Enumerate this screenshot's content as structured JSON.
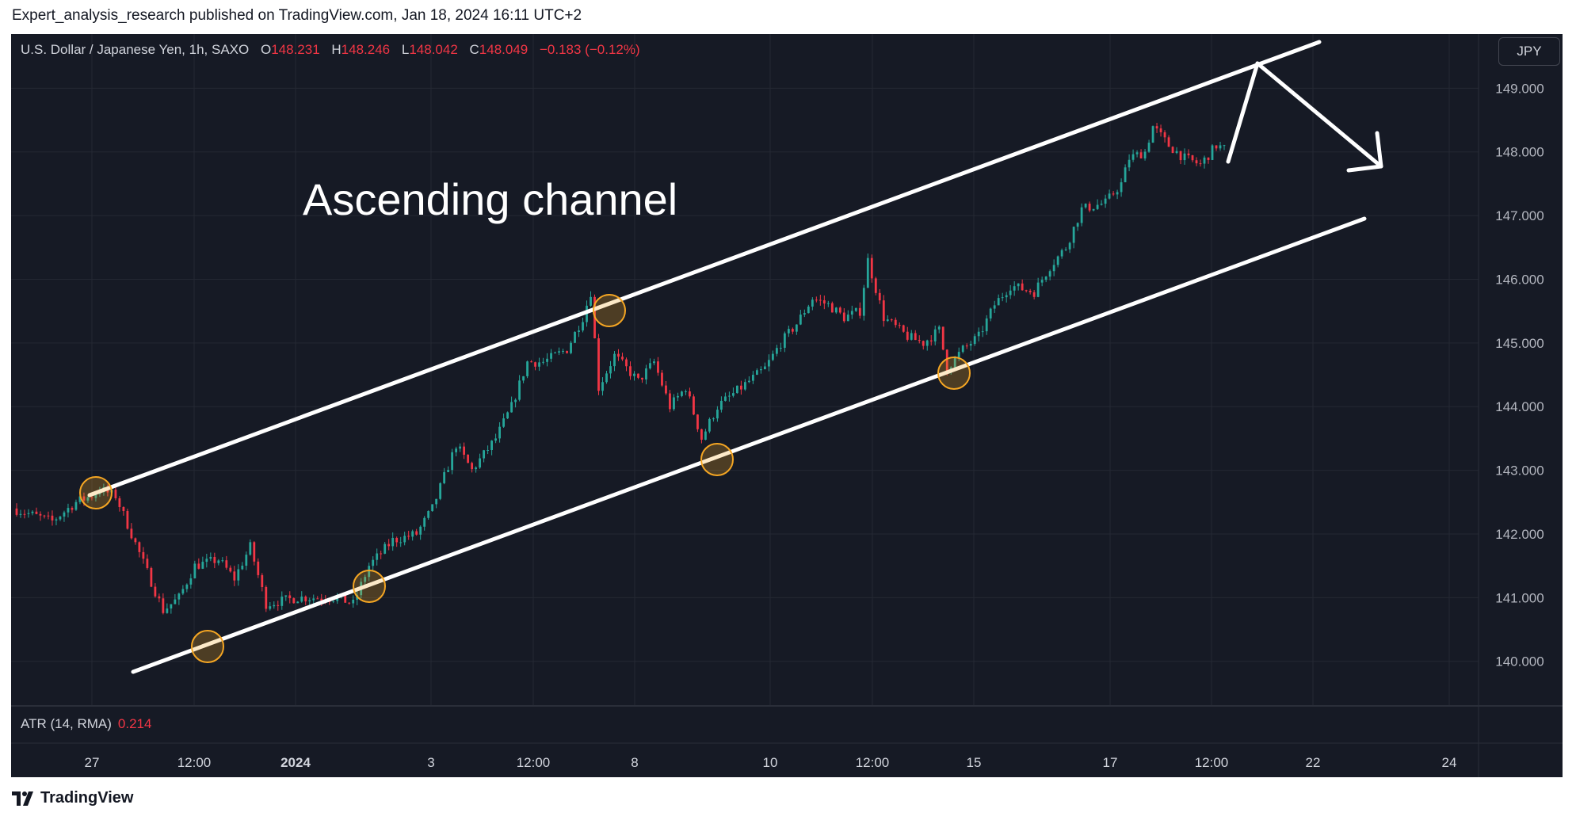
{
  "header": {
    "caption": "Expert_analysis_research published on TradingView.com, Jan 18, 2024 16:11 UTC+2"
  },
  "legend": {
    "symbol": "U.S. Dollar / Japanese Yen, 1h, SAXO",
    "open_label": "O",
    "open": "148.231",
    "high_label": "H",
    "high": "148.246",
    "low_label": "L",
    "low": "148.042",
    "close_label": "C",
    "close": "148.049",
    "change": "−0.183 (−0.12%)"
  },
  "currency_button": "JPY",
  "annotation": "Ascending channel",
  "indicator": {
    "name": "ATR (14, RMA)",
    "value": "0.214"
  },
  "footer": {
    "brand": "TradingView"
  },
  "colors": {
    "background": "#161a25",
    "up": "#26a69a",
    "down": "#f23645",
    "drawing": "#ffffff",
    "marker": "#f5a623"
  },
  "chart_data": {
    "type": "candlestick",
    "ylim": [
      139.3,
      149.85
    ],
    "y_ticks": [
      "140.000",
      "141.000",
      "142.000",
      "143.000",
      "144.000",
      "145.000",
      "146.000",
      "147.000",
      "148.000",
      "149.000"
    ],
    "x_ticks": [
      "27",
      "12:00",
      "2024",
      "3",
      "12:00",
      "8",
      "10",
      "12:00",
      "15",
      "17",
      "12:00",
      "22",
      "24"
    ],
    "grid": true,
    "price_path": [
      {
        "t": 0,
        "p": 142.4
      },
      {
        "t": 5,
        "p": 142.2
      },
      {
        "t": 8,
        "p": 142.5
      },
      {
        "t": 10,
        "p": 142.6
      },
      {
        "t": 11,
        "p": 142.7
      },
      {
        "t": 13,
        "p": 142.6
      },
      {
        "t": 15,
        "p": 142.0
      },
      {
        "t": 17,
        "p": 141.4
      },
      {
        "t": 19,
        "p": 140.8
      },
      {
        "t": 21,
        "p": 141.0
      },
      {
        "t": 23,
        "p": 141.5
      },
      {
        "t": 26,
        "p": 141.6
      },
      {
        "t": 28,
        "p": 141.3
      },
      {
        "t": 30,
        "p": 141.8
      },
      {
        "t": 32,
        "p": 140.9
      },
      {
        "t": 36,
        "p": 141.0
      },
      {
        "t": 41,
        "p": 141.0
      },
      {
        "t": 43,
        "p": 140.9
      },
      {
        "t": 45,
        "p": 141.5
      },
      {
        "t": 48,
        "p": 141.9
      },
      {
        "t": 51,
        "p": 142.0
      },
      {
        "t": 53,
        "p": 142.4
      },
      {
        "t": 56,
        "p": 143.4
      },
      {
        "t": 58,
        "p": 143.0
      },
      {
        "t": 61,
        "p": 143.5
      },
      {
        "t": 63,
        "p": 144.0
      },
      {
        "t": 65,
        "p": 144.7
      },
      {
        "t": 67,
        "p": 144.7
      },
      {
        "t": 70,
        "p": 144.9
      },
      {
        "t": 72,
        "p": 145.4
      },
      {
        "t": 73,
        "p": 145.8
      },
      {
        "t": 74,
        "p": 144.3
      },
      {
        "t": 76,
        "p": 144.8
      },
      {
        "t": 79,
        "p": 144.4
      },
      {
        "t": 81,
        "p": 144.7
      },
      {
        "t": 83,
        "p": 144.0
      },
      {
        "t": 85,
        "p": 144.3
      },
      {
        "t": 87,
        "p": 143.5
      },
      {
        "t": 89,
        "p": 144.0
      },
      {
        "t": 92,
        "p": 144.3
      },
      {
        "t": 95,
        "p": 144.6
      },
      {
        "t": 97,
        "p": 145.0
      },
      {
        "t": 99,
        "p": 145.3
      },
      {
        "t": 101,
        "p": 145.7
      },
      {
        "t": 103,
        "p": 145.6
      },
      {
        "t": 105,
        "p": 145.4
      },
      {
        "t": 107,
        "p": 145.5
      },
      {
        "t": 108,
        "p": 146.3
      },
      {
        "t": 110,
        "p": 145.4
      },
      {
        "t": 113,
        "p": 145.1
      },
      {
        "t": 115,
        "p": 145.0
      },
      {
        "t": 117,
        "p": 145.2
      },
      {
        "t": 118,
        "p": 144.6
      },
      {
        "t": 120,
        "p": 144.9
      },
      {
        "t": 122,
        "p": 145.1
      },
      {
        "t": 124,
        "p": 145.6
      },
      {
        "t": 126,
        "p": 145.9
      },
      {
        "t": 129,
        "p": 145.8
      },
      {
        "t": 131,
        "p": 146.2
      },
      {
        "t": 133,
        "p": 146.5
      },
      {
        "t": 135,
        "p": 147.1
      },
      {
        "t": 138,
        "p": 147.2
      },
      {
        "t": 140,
        "p": 147.5
      },
      {
        "t": 141,
        "p": 147.9
      },
      {
        "t": 143,
        "p": 148.0
      },
      {
        "t": 144,
        "p": 148.4
      },
      {
        "t": 146,
        "p": 148.1
      },
      {
        "t": 148,
        "p": 147.9
      },
      {
        "t": 150,
        "p": 147.8
      },
      {
        "t": 152,
        "p": 148.1
      },
      {
        "t": 153,
        "p": 148.05
      }
    ]
  }
}
